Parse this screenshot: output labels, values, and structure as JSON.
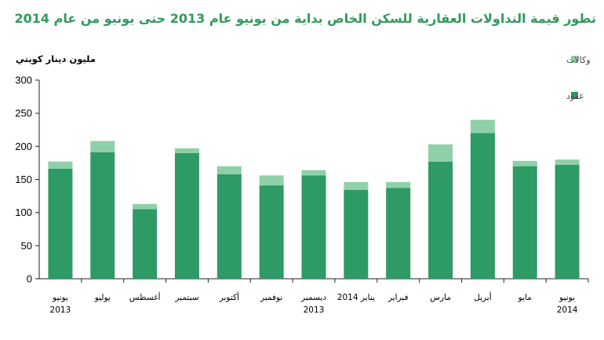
{
  "chart_data": {
    "type": "bar",
    "stacked": true,
    "title": "تطور قيمة التداولات العقارية للسكن الخاص بداية من يونيو عام 2013 حتى يونيو من عام 2014",
    "ylabel": "مليون دينار كويتي",
    "xlabel": "",
    "ylim": [
      0,
      300
    ],
    "yticks": [
      0,
      50,
      100,
      150,
      200,
      250,
      300
    ],
    "categories": [
      [
        "يونيو",
        "2013"
      ],
      [
        "يوليو"
      ],
      [
        "أغسطس"
      ],
      [
        "سبتمبر"
      ],
      [
        "أكتوبر"
      ],
      [
        "نوفمبر"
      ],
      [
        "ديسمبر",
        "2013"
      ],
      [
        "يناير 2014"
      ],
      [
        "فبراير"
      ],
      [
        "مارس"
      ],
      [
        "أبريل"
      ],
      [
        "مايو"
      ],
      [
        "يونيو",
        "2014"
      ]
    ],
    "series": [
      {
        "name": "عقود",
        "color": "#2e9a66",
        "values": [
          166,
          191,
          105,
          190,
          158,
          141,
          156,
          134,
          137,
          177,
          220,
          170,
          172
        ]
      },
      {
        "name": "وكالات",
        "color": "#8fd0a8",
        "values": [
          11,
          17,
          8,
          7,
          12,
          15,
          8,
          12,
          9,
          26,
          20,
          8,
          8
        ]
      }
    ],
    "legend": {
      "position": "right",
      "items": [
        "وكالات",
        "عقود"
      ]
    },
    "grid": false
  }
}
